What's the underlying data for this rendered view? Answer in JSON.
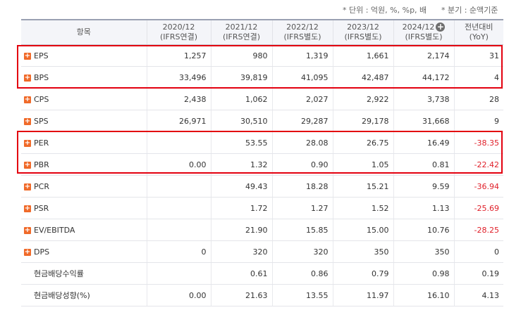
{
  "notes": {
    "units": "* 단위 : 억원, %, %p, 배",
    "basis": "* 분기 : 순액기준"
  },
  "header": {
    "item": "항목",
    "periods": [
      {
        "year": "2020/12",
        "std": "(IFRS연결)"
      },
      {
        "year": "2021/12",
        "std": "(IFRS연결)"
      },
      {
        "year": "2022/12",
        "std": "(IFRS별도)"
      },
      {
        "year": "2023/12",
        "std": "(IFRS별도)"
      },
      {
        "year": "2024/12",
        "std": "(IFRS별도)"
      }
    ],
    "expand_icon": "plus-circle-icon",
    "yoy_title": "전년대비",
    "yoy_sub": "(YoY)"
  },
  "rows": [
    {
      "label": "EPS",
      "expandable": true,
      "values": [
        "1,257",
        "980",
        "1,319",
        "1,661",
        "2,174"
      ],
      "yoy": "31"
    },
    {
      "label": "BPS",
      "expandable": true,
      "values": [
        "33,496",
        "39,819",
        "41,095",
        "42,487",
        "44,172"
      ],
      "yoy": "4"
    },
    {
      "label": "CPS",
      "expandable": true,
      "values": [
        "2,438",
        "1,062",
        "2,027",
        "2,922",
        "3,738"
      ],
      "yoy": "28"
    },
    {
      "label": "SPS",
      "expandable": true,
      "values": [
        "26,971",
        "30,510",
        "29,287",
        "29,178",
        "31,668"
      ],
      "yoy": "9"
    },
    {
      "label": "PER",
      "expandable": true,
      "values": [
        "",
        "53.55",
        "28.08",
        "26.75",
        "16.49"
      ],
      "yoy": "-38.35"
    },
    {
      "label": "PBR",
      "expandable": true,
      "values": [
        "0.00",
        "1.32",
        "0.90",
        "1.05",
        "0.81"
      ],
      "yoy": "-22.42"
    },
    {
      "label": "PCR",
      "expandable": true,
      "values": [
        "",
        "49.43",
        "18.28",
        "15.21",
        "9.59"
      ],
      "yoy": "-36.94"
    },
    {
      "label": "PSR",
      "expandable": true,
      "values": [
        "",
        "1.72",
        "1.27",
        "1.52",
        "1.13"
      ],
      "yoy": "-25.69"
    },
    {
      "label": "EV/EBITDA",
      "expandable": true,
      "values": [
        "",
        "21.90",
        "15.85",
        "15.00",
        "10.76"
      ],
      "yoy": "-28.25"
    },
    {
      "label": "DPS",
      "expandable": true,
      "values": [
        "0",
        "320",
        "320",
        "350",
        "350"
      ],
      "yoy": "0"
    },
    {
      "label": "현금배당수익률",
      "expandable": false,
      "values": [
        "",
        "0.61",
        "0.86",
        "0.79",
        "0.98"
      ],
      "yoy": "0.19"
    },
    {
      "label": "현금배당성향(%)",
      "expandable": false,
      "values": [
        "0.00",
        "21.63",
        "13.55",
        "11.97",
        "16.10"
      ],
      "yoy": "4.13"
    }
  ],
  "colors": {
    "negative": "#e0202a",
    "highlight_box": "#e3000f",
    "expand_button": "#f06a29",
    "header_bg": "#f4f5f9"
  }
}
